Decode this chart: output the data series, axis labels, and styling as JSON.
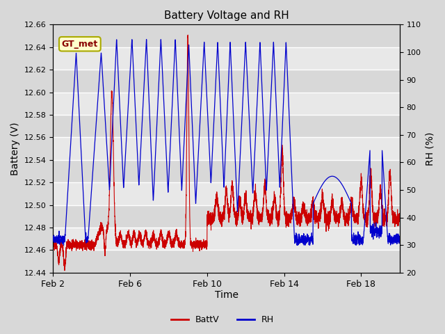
{
  "title": "Battery Voltage and RH",
  "xlabel": "Time",
  "ylabel_left": "Battery (V)",
  "ylabel_right": "RH (%)",
  "ylim_left": [
    12.44,
    12.66
  ],
  "ylim_right": [
    20,
    110
  ],
  "yticks_left": [
    12.44,
    12.46,
    12.48,
    12.5,
    12.52,
    12.54,
    12.56,
    12.58,
    12.6,
    12.62,
    12.64,
    12.66
  ],
  "yticks_right": [
    20,
    30,
    40,
    50,
    60,
    70,
    80,
    90,
    100,
    110
  ],
  "xtick_labels": [
    "Feb 2",
    "Feb 6",
    "Feb 10",
    "Feb 14",
    "Feb 18"
  ],
  "xtick_positions": [
    2,
    6,
    10,
    14,
    18
  ],
  "xlim": [
    2,
    20
  ],
  "fig_bg_color": "#d8d8d8",
  "plot_bg_color": "#e8e8e8",
  "grid_color": "#ffffff",
  "battv_color": "#cc0000",
  "rh_color": "#0000cc",
  "legend_battv": "BattV",
  "legend_rh": "RH",
  "watermark_text": "GT_met",
  "watermark_bg": "#ffffcc",
  "watermark_border": "#aaaa00",
  "watermark_text_color": "#880000",
  "title_fontsize": 11,
  "label_fontsize": 10,
  "tick_fontsize": 9,
  "ytick_fontsize": 8
}
